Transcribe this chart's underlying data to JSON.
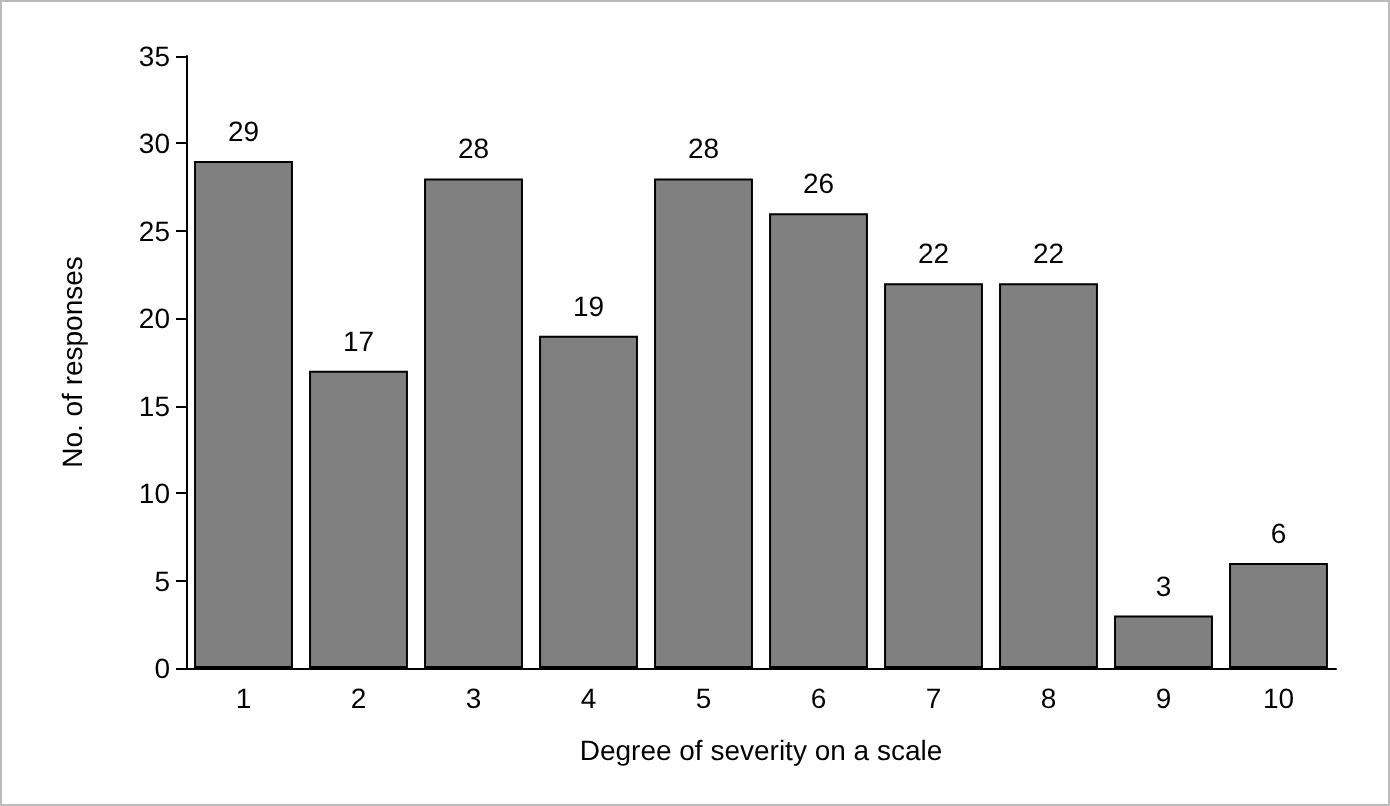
{
  "chart_data": {
    "type": "bar",
    "xlabel": "Degree of severity on a scale",
    "ylabel": "No. of responses",
    "categories": [
      "1",
      "2",
      "3",
      "4",
      "5",
      "6",
      "7",
      "8",
      "9",
      "10"
    ],
    "values": [
      29,
      17,
      28,
      19,
      28,
      26,
      22,
      22,
      3,
      6
    ],
    "color": "#808080",
    "ylim": [
      0,
      35
    ],
    "yticks": [
      0,
      5,
      10,
      15,
      20,
      25,
      30,
      35
    ],
    "grid": false,
    "data_labels": true
  }
}
